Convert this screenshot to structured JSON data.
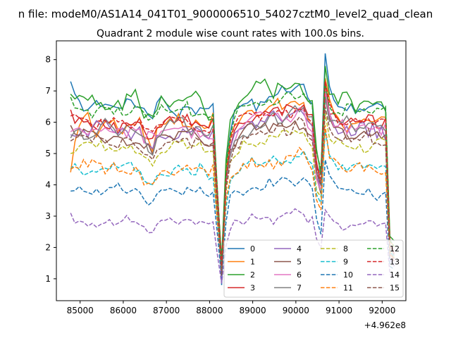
{
  "chart_data": {
    "type": "line",
    "suptitle": "n file: modeM0/AS1A14_041T01_9000006510_54027cztM0_level2_quad_clean",
    "title": "Quadrant 2 module wise count rates with 100.0s bins.",
    "xlabel": "",
    "ylabel": "",
    "x_offset_label": "+4.962e8",
    "xlim": [
      84450,
      92550
    ],
    "ylim": [
      0.3,
      8.6
    ],
    "x_ticks": [
      85000,
      86000,
      87000,
      88000,
      89000,
      90000,
      91000,
      92000
    ],
    "x_tick_labels": [
      "85000",
      "86000",
      "87000",
      "88000",
      "89000",
      "90000",
      "91000",
      "92000"
    ],
    "y_ticks": [
      1,
      2,
      3,
      4,
      5,
      6,
      7,
      8
    ],
    "y_tick_labels": [
      "1",
      "2",
      "3",
      "4",
      "5",
      "6",
      "7",
      "8"
    ],
    "grid": false,
    "legend_position": "lower-right",
    "legend_columns": 4,
    "x_start": 84780,
    "bin": 100,
    "series": [
      {
        "name": "0",
        "color": "#1f77b4",
        "style": "solid",
        "base": 6.5,
        "sd": 0.25,
        "min": 0.8,
        "seed": 1,
        "early": 7.3,
        "peak": 8.2
      },
      {
        "name": "1",
        "color": "#ff7f0e",
        "style": "solid",
        "base": 6.0,
        "sd": 0.3,
        "min": 1.5,
        "seed": 2,
        "early": 4.4,
        "peak": 7.4
      },
      {
        "name": "2",
        "color": "#2ca02c",
        "style": "solid",
        "base": 6.65,
        "sd": 0.35,
        "min": 1.6,
        "seed": 3,
        "early": 6.9,
        "peak": 7.8
      },
      {
        "name": "3",
        "color": "#d62728",
        "style": "solid",
        "base": 6.0,
        "sd": 0.25,
        "min": 1.3,
        "seed": 4,
        "early": 6.4,
        "peak": 7.3
      },
      {
        "name": "4",
        "color": "#9467bd",
        "style": "solid",
        "base": 5.7,
        "sd": 0.25,
        "min": 0.9,
        "seed": 5,
        "early": 5.6,
        "peak": 6.8
      },
      {
        "name": "5",
        "color": "#8c564b",
        "style": "solid",
        "base": 5.55,
        "sd": 0.25,
        "min": 1.2,
        "seed": 6,
        "early": 5.9,
        "peak": 6.9
      },
      {
        "name": "6",
        "color": "#e377c2",
        "style": "solid",
        "base": 5.8,
        "sd": 0.25,
        "min": 1.1,
        "seed": 7,
        "early": 5.7,
        "peak": 7.0
      },
      {
        "name": "7",
        "color": "#7f7f7f",
        "style": "solid",
        "base": 5.7,
        "sd": 0.3,
        "min": 1.3,
        "seed": 8,
        "early": 5.5,
        "peak": 6.8
      },
      {
        "name": "8",
        "color": "#bcbd22",
        "style": "dashed",
        "base": 5.2,
        "sd": 0.22,
        "min": 1.3,
        "seed": 9,
        "early": 5.0,
        "peak": 6.3
      },
      {
        "name": "9",
        "color": "#17becf",
        "style": "dashed",
        "base": 4.5,
        "sd": 0.22,
        "min": 1.4,
        "seed": 10,
        "early": 4.5,
        "peak": 5.7
      },
      {
        "name": "10",
        "color": "#1f77b4",
        "style": "dashed",
        "base": 3.8,
        "sd": 0.2,
        "min": 1.0,
        "seed": 11,
        "early": 3.8,
        "peak": 4.8
      },
      {
        "name": "11",
        "color": "#ff7f0e",
        "style": "dashed",
        "base": 4.5,
        "sd": 0.25,
        "min": 1.3,
        "seed": 12,
        "early": 4.5,
        "peak": 5.9
      },
      {
        "name": "12",
        "color": "#2ca02c",
        "style": "dashed",
        "base": 6.4,
        "sd": 0.22,
        "min": 1.5,
        "seed": 13,
        "early": 6.8,
        "peak": 7.2
      },
      {
        "name": "13",
        "color": "#d62728",
        "style": "dashed",
        "base": 6.0,
        "sd": 0.22,
        "min": 1.4,
        "seed": 14,
        "early": 6.2,
        "peak": 7.3
      },
      {
        "name": "14",
        "color": "#9467bd",
        "style": "dashed",
        "base": 2.8,
        "sd": 0.15,
        "min": 0.85,
        "seed": 15,
        "early": 3.1,
        "peak": 3.2
      },
      {
        "name": "15",
        "color": "#8c564b",
        "style": "dashed",
        "base": 5.4,
        "sd": 0.25,
        "min": 1.1,
        "seed": 16,
        "early": 5.4,
        "peak": 6.5
      }
    ]
  }
}
